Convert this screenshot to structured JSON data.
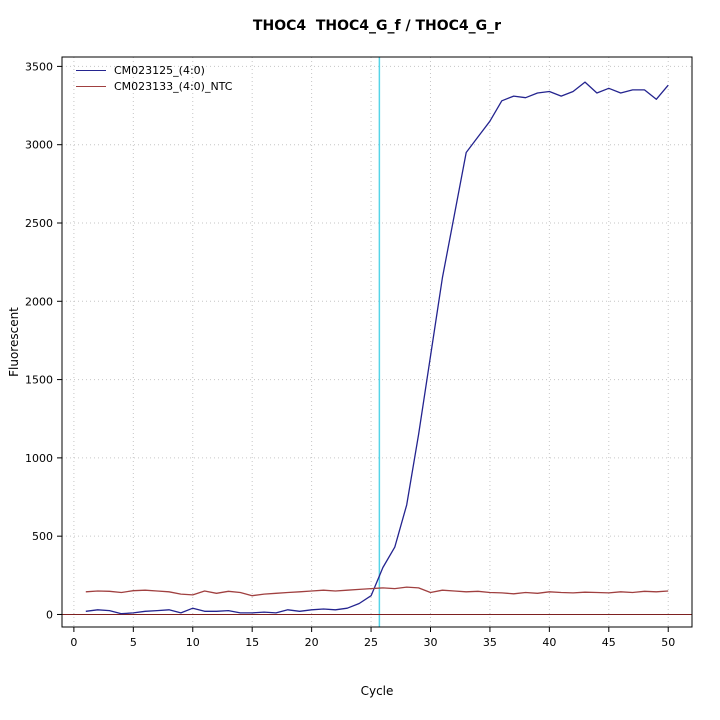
{
  "chart_data": {
    "type": "line",
    "title": "THOC4  THOC4_G_f / THOC4_G_r",
    "xlabel": "Cycle",
    "ylabel": "Fluorescent",
    "xlim": [
      -1,
      52
    ],
    "ylim": [
      -80,
      3560
    ],
    "x_ticks": [
      0,
      5,
      10,
      15,
      20,
      25,
      30,
      35,
      40,
      45,
      50
    ],
    "y_ticks": [
      0,
      500,
      1000,
      1500,
      2000,
      2500,
      3000,
      3500
    ],
    "grid": true,
    "grid_color": "#c6c6c6",
    "legend_position": "top-left",
    "threshold_line": {
      "x": 25.7,
      "color": "#55d4e8"
    },
    "baseline": {
      "y": 0,
      "color": "#7e2020"
    },
    "x": [
      1,
      2,
      3,
      4,
      5,
      6,
      7,
      8,
      9,
      10,
      11,
      12,
      13,
      14,
      15,
      16,
      17,
      18,
      19,
      20,
      21,
      22,
      23,
      24,
      25,
      26,
      27,
      28,
      29,
      30,
      31,
      32,
      33,
      34,
      35,
      36,
      37,
      38,
      39,
      40,
      41,
      42,
      43,
      44,
      45,
      46,
      47,
      48,
      49,
      50
    ],
    "series": [
      {
        "name": "CM023125_(4:0)",
        "color": "#24248f",
        "values": [
          20,
          30,
          25,
          5,
          10,
          20,
          25,
          30,
          10,
          40,
          20,
          20,
          25,
          10,
          10,
          15,
          10,
          30,
          20,
          30,
          35,
          30,
          40,
          70,
          120,
          300,
          430,
          700,
          1150,
          1650,
          2150,
          2550,
          2950,
          3050,
          3150,
          3280,
          3310,
          3300,
          3330,
          3340,
          3310,
          3340,
          3400,
          3330,
          3360,
          3330,
          3350,
          3350,
          3290,
          3380
        ]
      },
      {
        "name": "CM023133_(4:0)_NTC",
        "color": "#a04040",
        "values": [
          145,
          150,
          148,
          140,
          152,
          155,
          150,
          145,
          130,
          125,
          150,
          135,
          148,
          140,
          120,
          130,
          135,
          140,
          145,
          150,
          155,
          150,
          155,
          160,
          165,
          170,
          165,
          175,
          170,
          140,
          155,
          150,
          145,
          148,
          140,
          138,
          132,
          140,
          135,
          145,
          140,
          138,
          142,
          140,
          138,
          145,
          140,
          148,
          145,
          150
        ]
      }
    ]
  }
}
